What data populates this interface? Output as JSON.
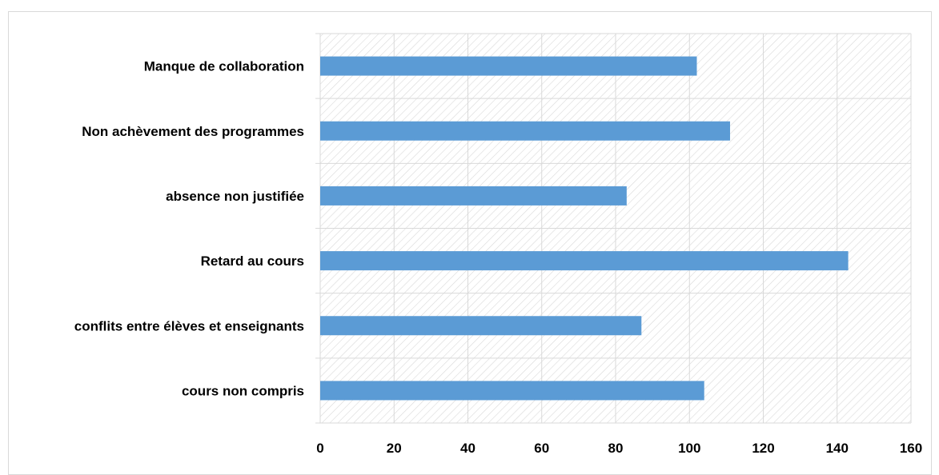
{
  "chart_data": {
    "type": "bar",
    "orientation": "horizontal",
    "categories": [
      "Manque de collaboration",
      "Non achèvement des programmes",
      "absence non justifiée",
      "Retard au cours",
      "conflits entre élèves et enseignants",
      "cours non compris"
    ],
    "values": [
      102,
      111,
      83,
      143,
      87,
      104
    ],
    "xlim": [
      0,
      160
    ],
    "xticks": [
      "0",
      "20",
      "40",
      "60",
      "80",
      "100",
      "120",
      "140",
      "160"
    ],
    "title": "",
    "xlabel": "",
    "ylabel": "",
    "grid": true,
    "background_pattern": "diagonal-hatch",
    "colors": {
      "bar": "#5b9bd5",
      "grid": "#d9d9d9",
      "hatch": "#d9d9d9"
    }
  }
}
